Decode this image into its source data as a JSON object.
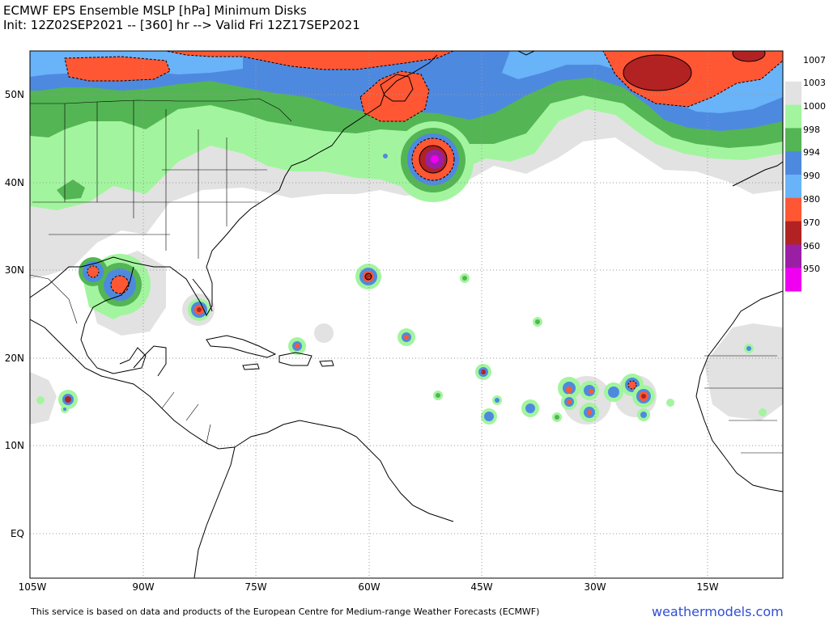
{
  "header": {
    "title": "ECMWF EPS Ensemble MSLP [hPa] Minimum Disks",
    "subtitle": "Init: 12Z02SEP2021 -- [360] hr --> Valid Fri 12Z17SEP2021"
  },
  "axes": {
    "lat_labels": [
      "50N",
      "40N",
      "30N",
      "20N",
      "10N",
      "EQ"
    ],
    "lon_labels": [
      "105W",
      "90W",
      "75W",
      "60W",
      "45W",
      "30W",
      "15W"
    ]
  },
  "legend": {
    "levels": [
      {
        "label": "1007",
        "color": "#ffffff"
      },
      {
        "label": "1003",
        "color": "#e2e2e2"
      },
      {
        "label": "1000",
        "color": "#a2f59e"
      },
      {
        "label": "998",
        "color": "#54b554"
      },
      {
        "label": "994",
        "color": "#4e89e0"
      },
      {
        "label": "990",
        "color": "#69b3f9"
      },
      {
        "label": "980",
        "color": "#ff5733"
      },
      {
        "label": "970",
        "color": "#b22222"
      },
      {
        "label": "960",
        "color": "#9b1fa5"
      },
      {
        "label": "950",
        "color": "#f000f0"
      }
    ]
  },
  "footer": {
    "disclaimer": "This service is based on data and products of the European Centre for Medium-range Weather Forecasts (ECMWF)",
    "brand": "weathermodels.com"
  }
}
